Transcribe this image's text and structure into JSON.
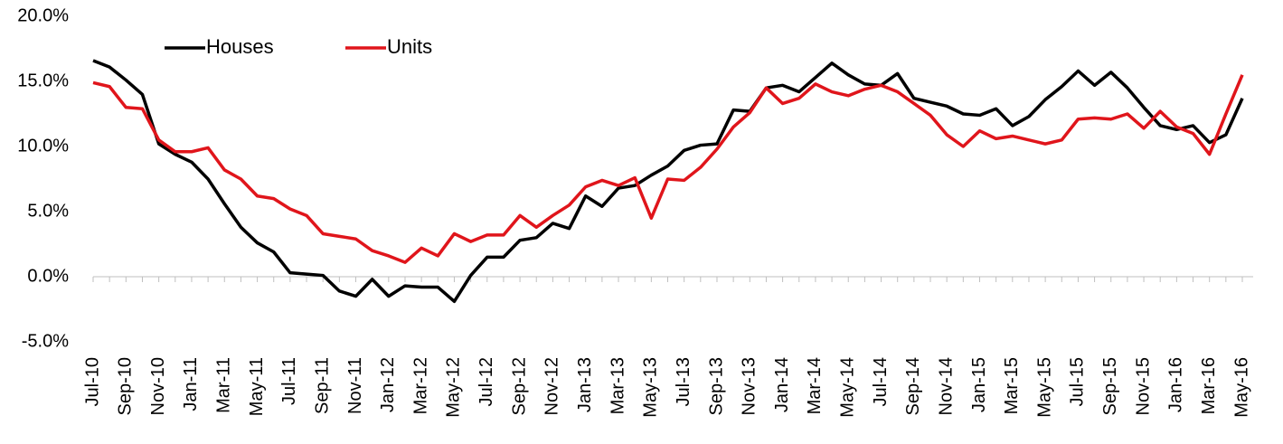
{
  "chart_data": {
    "type": "line",
    "categories": [
      "Jul-10",
      null,
      "Sep-10",
      null,
      "Nov-10",
      null,
      "Jan-11",
      null,
      "Mar-11",
      null,
      "May-11",
      null,
      "Jul-11",
      null,
      "Sep-11",
      null,
      "Nov-11",
      null,
      "Jan-12",
      null,
      "Mar-12",
      null,
      "May-12",
      null,
      "Jul-12",
      null,
      "Sep-12",
      null,
      "Nov-12",
      null,
      "Jan-13",
      null,
      "Mar-13",
      null,
      "May-13",
      null,
      "Jul-13",
      null,
      "Sep-13",
      null,
      "Nov-13",
      null,
      "Jan-14",
      null,
      "Mar-14",
      null,
      "May-14",
      null,
      "Jul-14",
      null,
      "Sep-14",
      null,
      "Nov-14",
      null,
      "Jan-15",
      null,
      "Mar-15",
      null,
      "May-15",
      null,
      "Jul-15",
      null,
      "Sep-15",
      null,
      "Nov-15",
      null,
      "Jan-16",
      null,
      "Mar-16",
      null,
      "May-16"
    ],
    "series": [
      {
        "name": "Houses",
        "color": "#000000",
        "values": [
          16.6,
          16.1,
          15.1,
          14.0,
          10.2,
          9.4,
          8.8,
          7.5,
          5.6,
          3.8,
          2.6,
          1.9,
          0.3,
          0.2,
          0.1,
          -1.1,
          -1.5,
          -0.2,
          -1.5,
          -0.7,
          -0.8,
          -0.8,
          -1.9,
          0.1,
          1.5,
          1.5,
          2.8,
          3.0,
          4.1,
          3.7,
          6.2,
          5.4,
          6.8,
          7.0,
          7.8,
          8.5,
          9.7,
          10.1,
          10.2,
          12.8,
          12.7,
          14.5,
          14.7,
          14.2,
          15.3,
          16.4,
          15.5,
          14.8,
          14.7,
          15.6,
          13.7,
          13.4,
          13.1,
          12.5,
          12.4,
          12.9,
          11.6,
          12.3,
          13.6,
          14.6,
          15.8,
          14.7,
          15.7,
          14.5,
          13.0,
          11.6,
          11.3,
          11.6,
          10.3,
          10.9,
          13.7
        ]
      },
      {
        "name": "Units",
        "color": "#e0151b",
        "values": [
          14.9,
          14.6,
          13.0,
          12.9,
          10.5,
          9.6,
          9.6,
          9.9,
          8.2,
          7.5,
          6.2,
          6.0,
          5.2,
          4.7,
          3.3,
          3.1,
          2.9,
          2.0,
          1.6,
          1.1,
          2.2,
          1.6,
          3.3,
          2.7,
          3.2,
          3.2,
          4.7,
          3.8,
          4.7,
          5.5,
          6.9,
          7.4,
          7.0,
          7.6,
          4.5,
          7.5,
          7.4,
          8.4,
          9.8,
          11.5,
          12.6,
          14.5,
          13.3,
          13.7,
          14.8,
          14.2,
          13.9,
          14.4,
          14.7,
          14.2,
          13.3,
          12.4,
          10.9,
          10.0,
          11.2,
          10.6,
          10.8,
          10.5,
          10.2,
          10.5,
          12.1,
          12.2,
          12.1,
          12.5,
          11.4,
          12.7,
          11.5,
          11.0,
          9.4,
          12.5,
          15.5
        ]
      }
    ],
    "ylim": [
      -5,
      20
    ],
    "yticks": [
      {
        "value": -5,
        "label": "-5.0%"
      },
      {
        "value": 0,
        "label": "0.0%"
      },
      {
        "value": 5,
        "label": "5.0%"
      },
      {
        "value": 10,
        "label": "10.0%"
      },
      {
        "value": 15,
        "label": "15.0%"
      },
      {
        "value": 20,
        "label": "20.0%"
      }
    ],
    "legend": "top-left"
  }
}
